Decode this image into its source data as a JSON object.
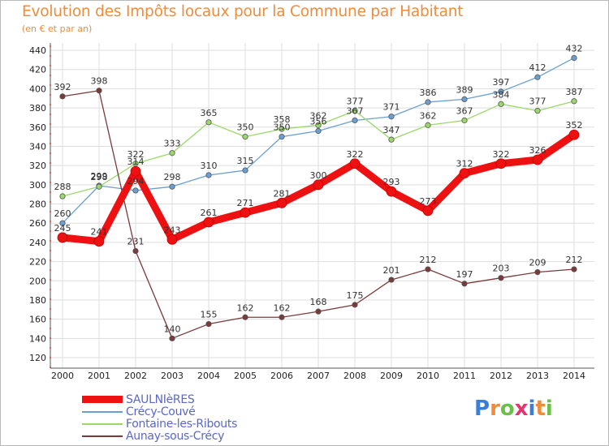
{
  "title": "Evolution des Impôts locaux pour la Commune par Habitant",
  "subtitle": "(en € et par an)",
  "logo": {
    "letters": [
      "P",
      "r",
      "o",
      "x",
      "i",
      "t",
      "i"
    ],
    "colors": [
      "#3a7fd5",
      "#ef8c3c",
      "#6cc04a",
      "#e5336d",
      "#3a7fd5",
      "#ef8c3c",
      "#6cc04a"
    ]
  },
  "chart_data": {
    "type": "line",
    "x": [
      2000,
      2001,
      2002,
      2003,
      2004,
      2005,
      2006,
      2007,
      2008,
      2009,
      2010,
      2011,
      2012,
      2013,
      2014
    ],
    "ylim": [
      120,
      440
    ],
    "yticks": [
      120,
      140,
      160,
      180,
      200,
      220,
      240,
      260,
      280,
      300,
      320,
      340,
      360,
      380,
      400,
      420,
      440
    ],
    "grid": true,
    "legend_position": "bottom-left",
    "series": [
      {
        "name": "SAULNIèRES",
        "color": "#ee1111",
        "values": [
          245,
          241,
          314,
          243,
          261,
          271,
          281,
          300,
          322,
          293,
          273,
          312,
          322,
          326,
          352
        ]
      },
      {
        "name": "Crécy-Couvé",
        "color": "#6a9fd4",
        "values": [
          260,
          299,
          294,
          298,
          310,
          315,
          350,
          356,
          367,
          371,
          386,
          389,
          397,
          412,
          432
        ]
      },
      {
        "name": "Fontaine-les-Ribouts",
        "color": "#9ad86a",
        "values": [
          288,
          298,
          322,
          333,
          365,
          350,
          358,
          362,
          377,
          347,
          362,
          367,
          384,
          377,
          387
        ]
      },
      {
        "name": "Aunay-sous-Crécy",
        "color": "#7a3a3a",
        "values": [
          392,
          398,
          231,
          140,
          155,
          162,
          162,
          168,
          175,
          201,
          212,
          197,
          203,
          209,
          212
        ]
      }
    ]
  }
}
